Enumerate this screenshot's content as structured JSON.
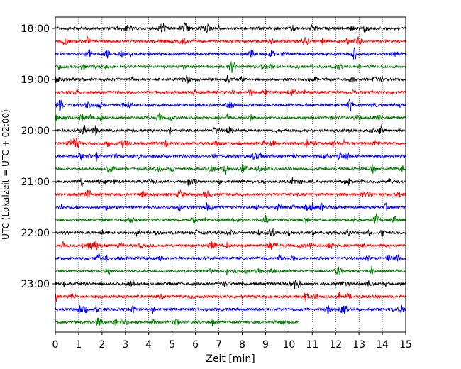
{
  "chart_data": {
    "type": "line",
    "title": "",
    "xlabel": "Zeit  [min]",
    "ylabel": "UTC (Lokalzeit = UTC + 02:00)",
    "xlim": [
      0,
      15
    ],
    "x_ticks": [
      "0",
      "1",
      "2",
      "3",
      "4",
      "5",
      "6",
      "7",
      "8",
      "9",
      "10",
      "11",
      "12",
      "13",
      "14",
      "15"
    ],
    "y_tick_labels": [
      "18:00",
      "19:00",
      "20:00",
      "21:00",
      "22:00",
      "23:00"
    ],
    "grid": "vertical-dotted",
    "trace_colors": [
      "#000000",
      "#ff0000",
      "#0000ff",
      "#008000"
    ],
    "traces": [
      {
        "start": "18:00",
        "color": "#000000",
        "x_end": 15
      },
      {
        "start": "18:15",
        "color": "#ff0000",
        "x_end": 15
      },
      {
        "start": "18:30",
        "color": "#0000ff",
        "x_end": 15
      },
      {
        "start": "18:45",
        "color": "#008000",
        "x_end": 15
      },
      {
        "start": "19:00",
        "color": "#000000",
        "x_end": 15
      },
      {
        "start": "19:15",
        "color": "#ff0000",
        "x_end": 15
      },
      {
        "start": "19:30",
        "color": "#0000ff",
        "x_end": 15
      },
      {
        "start": "19:45",
        "color": "#008000",
        "x_end": 15
      },
      {
        "start": "20:00",
        "color": "#000000",
        "x_end": 15
      },
      {
        "start": "20:15",
        "color": "#ff0000",
        "x_end": 15
      },
      {
        "start": "20:30",
        "color": "#0000ff",
        "x_end": 15
      },
      {
        "start": "20:45",
        "color": "#008000",
        "x_end": 15
      },
      {
        "start": "21:00",
        "color": "#000000",
        "x_end": 15
      },
      {
        "start": "21:15",
        "color": "#ff0000",
        "x_end": 15
      },
      {
        "start": "21:30",
        "color": "#0000ff",
        "x_end": 15
      },
      {
        "start": "21:45",
        "color": "#008000",
        "x_end": 15
      },
      {
        "start": "22:00",
        "color": "#000000",
        "x_end": 15
      },
      {
        "start": "22:15",
        "color": "#ff0000",
        "x_end": 15
      },
      {
        "start": "22:30",
        "color": "#0000ff",
        "x_end": 15
      },
      {
        "start": "22:45",
        "color": "#008000",
        "x_end": 15
      },
      {
        "start": "23:00",
        "color": "#000000",
        "x_end": 15
      },
      {
        "start": "23:15",
        "color": "#ff0000",
        "x_end": 15
      },
      {
        "start": "23:30",
        "color": "#0000ff",
        "x_end": 15
      },
      {
        "start": "23:45",
        "color": "#008000",
        "x_end": 10.4
      }
    ]
  }
}
